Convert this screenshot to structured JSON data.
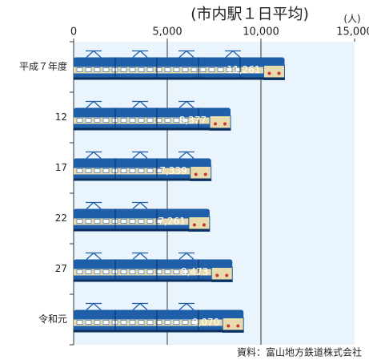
{
  "chart_data": {
    "type": "bar",
    "orientation": "horizontal",
    "title": "(市内駅１日平均)",
    "unit": "(人)",
    "categories": [
      "平成７年度",
      "12",
      "17",
      "22",
      "27",
      "令和元"
    ],
    "values": [
      11261,
      8377,
      7339,
      7261,
      8473,
      9070
    ],
    "value_labels": [
      "11,261",
      "8,377",
      "7,339",
      "7,261",
      "8,473",
      "9,070"
    ],
    "color": "#1f5ea8",
    "xlim": [
      0,
      15000
    ],
    "xticks": [
      0,
      {
        "value": 5000,
        "label": "5,000"
      },
      {
        "value": 10000,
        "label": "10,000"
      },
      {
        "value": 15000,
        "label": "15,000"
      }
    ],
    "grid": true,
    "source": "資料：富山地方鉄道株式会社"
  }
}
